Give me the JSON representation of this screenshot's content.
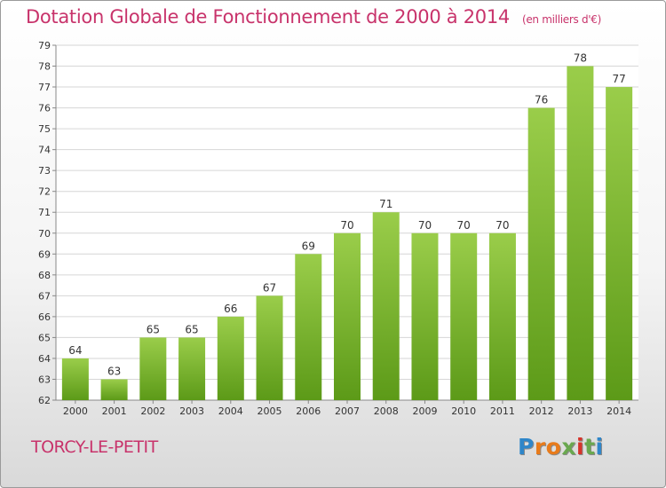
{
  "title": "Dotation Globale de Fonctionnement de 2000 à 2014",
  "unit_note": "(en milliers d'€)",
  "place_name": "TORCY-LE-PETIT",
  "logo": {
    "letters": [
      "P",
      "r",
      "o",
      "x",
      "i",
      "t",
      "i"
    ],
    "colors": [
      "#2f86c9",
      "#e87b1b",
      "#e87b1b",
      "#6aa84f",
      "#d6342b",
      "#6aa84f",
      "#2f86c9"
    ]
  },
  "colors": {
    "accent": "#c8336b",
    "bar_top": "#9acd4a",
    "bar_bottom": "#5c9a18",
    "grid": "#d6d6d6"
  },
  "chart_data": {
    "type": "bar",
    "categories": [
      "2000",
      "2001",
      "2002",
      "2003",
      "2004",
      "2005",
      "2006",
      "2007",
      "2008",
      "2009",
      "2010",
      "2011",
      "2012",
      "2013",
      "2014"
    ],
    "values": [
      64,
      63,
      65,
      65,
      66,
      67,
      69,
      70,
      71,
      70,
      70,
      70,
      76,
      78,
      77
    ],
    "ylim": [
      62,
      79
    ],
    "yticks": [
      62,
      63,
      64,
      65,
      66,
      67,
      68,
      69,
      70,
      71,
      72,
      73,
      74,
      75,
      76,
      77,
      78,
      79
    ],
    "grid": true,
    "data_labels": true
  }
}
